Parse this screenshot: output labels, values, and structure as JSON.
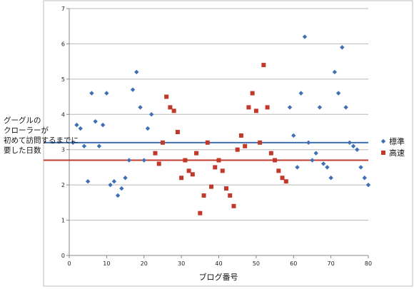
{
  "chart_data": {
    "type": "scatter",
    "xlabel": "ブログ番号",
    "ylabel_lines": [
      "グーグルの",
      "クローラーが",
      "初めて訪問するまでに",
      "要した日数"
    ],
    "xlim": [
      0,
      80
    ],
    "ylim": [
      0,
      7
    ],
    "x_ticks": [
      0,
      10,
      20,
      30,
      40,
      50,
      60,
      70,
      80
    ],
    "y_ticks": [
      0,
      1,
      2,
      3,
      4,
      5,
      6,
      7
    ],
    "grid": "horizontal",
    "legend_position": "right",
    "series": [
      {
        "name": "標準",
        "marker": "diamond",
        "color": "#3f6fb5",
        "mean_line": 3.2,
        "points": [
          [
            1,
            3.2
          ],
          [
            2,
            3.7
          ],
          [
            3,
            3.6
          ],
          [
            4,
            3.1
          ],
          [
            5,
            2.1
          ],
          [
            6,
            4.6
          ],
          [
            7,
            3.8
          ],
          [
            8,
            3.1
          ],
          [
            9,
            3.7
          ],
          [
            10,
            4.6
          ],
          [
            11,
            2.0
          ],
          [
            12,
            2.1
          ],
          [
            13,
            1.7
          ],
          [
            14,
            1.9
          ],
          [
            15,
            2.2
          ],
          [
            16,
            2.7
          ],
          [
            17,
            4.7
          ],
          [
            18,
            5.2
          ],
          [
            19,
            4.2
          ],
          [
            20,
            2.7
          ],
          [
            21,
            3.6
          ],
          [
            22,
            4.0
          ],
          [
            59,
            4.2
          ],
          [
            60,
            3.4
          ],
          [
            61,
            2.5
          ],
          [
            62,
            4.6
          ],
          [
            63,
            6.2
          ],
          [
            64,
            3.2
          ],
          [
            65,
            2.7
          ],
          [
            66,
            2.9
          ],
          [
            67,
            4.2
          ],
          [
            68,
            2.6
          ],
          [
            69,
            2.5
          ],
          [
            70,
            2.2
          ],
          [
            71,
            5.2
          ],
          [
            72,
            4.6
          ],
          [
            73,
            5.9
          ],
          [
            74,
            4.2
          ],
          [
            75,
            3.2
          ],
          [
            76,
            3.1
          ],
          [
            77,
            3.0
          ],
          [
            78,
            2.5
          ],
          [
            79,
            2.2
          ],
          [
            80,
            2.0
          ]
        ]
      },
      {
        "name": "高速",
        "marker": "square",
        "color": "#c0392b",
        "mean_line": 2.7,
        "points": [
          [
            23,
            2.9
          ],
          [
            24,
            2.6
          ],
          [
            25,
            3.2
          ],
          [
            26,
            4.5
          ],
          [
            27,
            4.2
          ],
          [
            28,
            4.1
          ],
          [
            29,
            3.5
          ],
          [
            30,
            2.2
          ],
          [
            31,
            2.7
          ],
          [
            32,
            2.4
          ],
          [
            33,
            2.3
          ],
          [
            34,
            2.9
          ],
          [
            35,
            1.2
          ],
          [
            36,
            1.7
          ],
          [
            37,
            3.2
          ],
          [
            38,
            1.95
          ],
          [
            39,
            2.5
          ],
          [
            40,
            2.7
          ],
          [
            41,
            2.4
          ],
          [
            42,
            1.9
          ],
          [
            43,
            1.7
          ],
          [
            44,
            1.4
          ],
          [
            45,
            3.0
          ],
          [
            46,
            3.4
          ],
          [
            47,
            3.1
          ],
          [
            48,
            4.2
          ],
          [
            49,
            4.6
          ],
          [
            50,
            4.1
          ],
          [
            51,
            3.2
          ],
          [
            52,
            5.4
          ],
          [
            53,
            4.2
          ],
          [
            54,
            2.9
          ],
          [
            55,
            2.7
          ],
          [
            56,
            2.4
          ],
          [
            57,
            2.2
          ],
          [
            58,
            2.1
          ]
        ]
      }
    ]
  }
}
